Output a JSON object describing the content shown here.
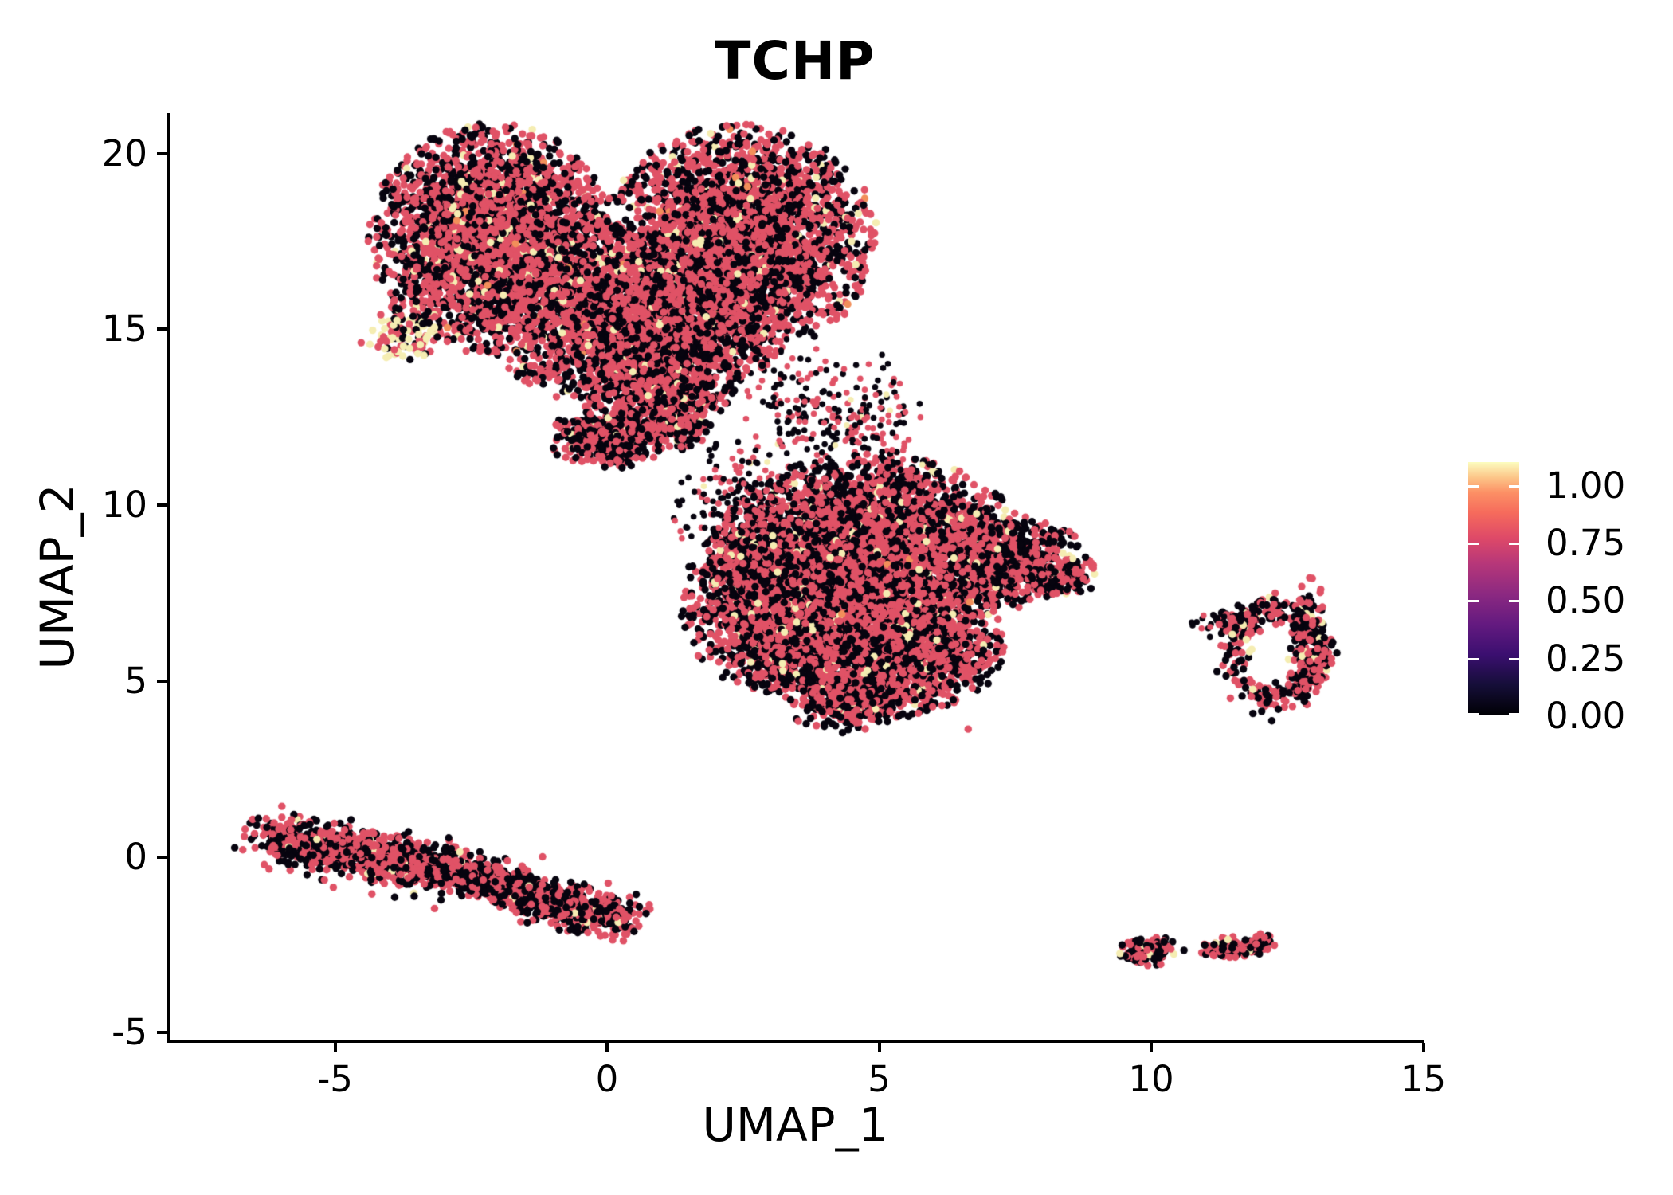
{
  "title": "TCHP",
  "axes": {
    "x": {
      "label": "UMAP_1",
      "ticks": [
        "-5",
        "0",
        "5",
        "10",
        "15"
      ],
      "tick_values": [
        -5,
        0,
        5,
        10,
        15
      ]
    },
    "y": {
      "label": "UMAP_2",
      "ticks": [
        "20",
        "15",
        "10",
        "5",
        "0",
        "-5"
      ],
      "tick_values": [
        20,
        15,
        10,
        5,
        0,
        -5
      ]
    }
  },
  "legend": {
    "labels": [
      "1.00",
      "0.75",
      "0.50",
      "0.25",
      "0.00"
    ],
    "label_values": [
      1.0,
      0.75,
      0.5,
      0.25,
      0.0
    ],
    "bar_value_max": 1.1,
    "gradient_stops": [
      [
        0.0,
        "#000004"
      ],
      [
        0.12,
        "#150e38"
      ],
      [
        0.24,
        "#3b0f70"
      ],
      [
        0.36,
        "#641a80"
      ],
      [
        0.48,
        "#8c2981"
      ],
      [
        0.6,
        "#b73779"
      ],
      [
        0.7,
        "#de4968"
      ],
      [
        0.8,
        "#f66b5c"
      ],
      [
        0.88,
        "#fc9065"
      ],
      [
        0.94,
        "#fcc689"
      ],
      [
        1.0,
        "#fcfdbf"
      ]
    ]
  },
  "palette": {
    "red": "#e05266",
    "black": "#07040f",
    "cream": "#f5edb2",
    "orange": "#f28f5a"
  },
  "chart_data": {
    "type": "scatter",
    "title": "TCHP",
    "xlabel": "UMAP_1",
    "ylabel": "UMAP_2",
    "xlim": [
      -8.1,
      15.0
    ],
    "ylim": [
      -5.2,
      21.1
    ],
    "grid": false,
    "legend_position": "right-colorbar",
    "point_radius_px": 4.7,
    "seed": 123456,
    "clusters": [
      {
        "name": "top-left-lobe",
        "kind": "gauss",
        "cx": -2.1,
        "cy": 17.55,
        "sx": 1.05,
        "sy": 1.5,
        "clip": 2.2,
        "n": 3200,
        "mix": {
          "red": 0.555,
          "black": 0.4,
          "cream": 0.04,
          "orange": 0.005
        }
      },
      {
        "name": "top-right-lobe",
        "kind": "gauss",
        "cx": 2.45,
        "cy": 17.55,
        "sx": 1.15,
        "sy": 1.5,
        "clip": 2.2,
        "n": 3200,
        "mix": {
          "red": 0.565,
          "black": 0.4,
          "cream": 0.03,
          "orange": 0.005
        }
      },
      {
        "name": "top-mid-bulge",
        "kind": "gauss",
        "cx": 0.55,
        "cy": 15.3,
        "sx": 1.25,
        "sy": 1.25,
        "clip": 2.2,
        "n": 2600,
        "mix": {
          "red": 0.54,
          "black": 0.42,
          "cream": 0.035,
          "orange": 0.005
        }
      },
      {
        "name": "cream-hotspot",
        "kind": "gauss",
        "cx": -3.8,
        "cy": 14.8,
        "sx": 0.38,
        "sy": 0.38,
        "clip": 2.0,
        "n": 90,
        "mix": {
          "red": 0.38,
          "black": 0.22,
          "cream": 0.4
        }
      },
      {
        "name": "top-lower-tail",
        "kind": "gauss",
        "cx": 1.0,
        "cy": 13.5,
        "sx": 0.65,
        "sy": 0.65,
        "clip": 2.2,
        "n": 600,
        "mix": {
          "red": 0.5,
          "black": 0.47,
          "cream": 0.03
        }
      },
      {
        "name": "stem-a",
        "kind": "gauss",
        "cx": 0.0,
        "cy": 11.9,
        "sx": 0.5,
        "sy": 0.4,
        "clip": 2.2,
        "n": 420,
        "mix": {
          "red": 0.52,
          "black": 0.45,
          "cream": 0.03
        }
      },
      {
        "name": "stem-b",
        "kind": "gauss",
        "cx": 1.15,
        "cy": 12.3,
        "sx": 0.35,
        "sy": 0.35,
        "clip": 2.2,
        "n": 220,
        "mix": {
          "red": 0.52,
          "black": 0.45,
          "cream": 0.03
        }
      },
      {
        "name": "bridge-sparse",
        "kind": "line",
        "x1": 2.7,
        "y1": 14.0,
        "x2": 5.7,
        "y2": 10.6,
        "sx": 0.4,
        "sy": 0.55,
        "n": 170,
        "r": 3.8,
        "mix": {
          "red": 0.45,
          "black": 0.52,
          "cream": 0.03
        }
      },
      {
        "name": "below-right-lobe",
        "kind": "gauss",
        "cx": 4.35,
        "cy": 12.6,
        "sx": 0.8,
        "sy": 0.95,
        "clip": 2.0,
        "n": 140,
        "r": 3.8,
        "mix": {
          "red": 0.45,
          "black": 0.52,
          "cream": 0.03
        }
      },
      {
        "name": "mid-main",
        "kind": "gauss",
        "cx": 4.8,
        "cy": 8.7,
        "sx": 1.35,
        "sy": 1.25,
        "clip": 2.2,
        "n": 3800,
        "mix": {
          "red": 0.52,
          "black": 0.445,
          "cream": 0.03,
          "orange": 0.005
        }
      },
      {
        "name": "mid-left-bulge",
        "kind": "gauss",
        "cx": 3.0,
        "cy": 7.2,
        "sx": 0.75,
        "sy": 1.15,
        "clip": 2.2,
        "n": 1500,
        "mix": {
          "red": 0.5,
          "black": 0.47,
          "cream": 0.03
        }
      },
      {
        "name": "mid-bottom",
        "kind": "gauss",
        "cx": 4.95,
        "cy": 6.0,
        "sx": 1.1,
        "sy": 0.95,
        "clip": 2.2,
        "n": 2200,
        "mix": {
          "red": 0.5,
          "black": 0.47,
          "cream": 0.03
        }
      },
      {
        "name": "mid-bottom-tip",
        "kind": "gauss",
        "cx": 4.4,
        "cy": 4.5,
        "sx": 0.55,
        "sy": 0.45,
        "clip": 2.2,
        "n": 350,
        "mix": {
          "red": 0.52,
          "black": 0.45,
          "cream": 0.03
        }
      },
      {
        "name": "mid-right-arm",
        "kind": "gauss",
        "cx": 7.4,
        "cy": 8.4,
        "sx": 0.65,
        "sy": 0.6,
        "clip": 2.2,
        "n": 650,
        "mix": {
          "red": 0.5,
          "black": 0.47,
          "cream": 0.03
        }
      },
      {
        "name": "mid-arm-tip",
        "kind": "gauss",
        "cx": 8.4,
        "cy": 8.0,
        "sx": 0.3,
        "sy": 0.3,
        "clip": 2.2,
        "n": 90,
        "mix": {
          "red": 0.5,
          "black": 0.47,
          "cream": 0.03
        }
      },
      {
        "name": "mid-topleft-sparse",
        "kind": "gauss",
        "cx": 2.6,
        "cy": 10.0,
        "sx": 0.7,
        "sy": 1.0,
        "clip": 2.0,
        "n": 260,
        "r": 3.8,
        "mix": {
          "red": 0.45,
          "black": 0.52,
          "cream": 0.03
        }
      },
      {
        "name": "lone-dot",
        "kind": "gauss",
        "cx": 6.65,
        "cy": 3.65,
        "sx": 0.02,
        "sy": 0.02,
        "clip": 2.0,
        "n": 1,
        "mix": {
          "red": 1.0
        }
      },
      {
        "name": "cigar-left",
        "kind": "line",
        "x1": -6.15,
        "y1": 0.55,
        "x2": -3.0,
        "y2": -0.35,
        "sx": 0.3,
        "sy": 0.32,
        "n": 950,
        "mix": {
          "red": 0.52,
          "black": 0.45,
          "cream": 0.03
        }
      },
      {
        "name": "cigar-right",
        "kind": "line",
        "x1": -3.0,
        "y1": -0.35,
        "x2": 0.2,
        "y2": -1.8,
        "sx": 0.3,
        "sy": 0.28,
        "n": 900,
        "mix": {
          "red": 0.5,
          "black": 0.47,
          "cream": 0.03
        }
      },
      {
        "name": "ring-cluster",
        "kind": "ring",
        "cx": 12.27,
        "cy": 5.75,
        "rx": 0.8,
        "ry": 1.25,
        "sr": 0.16,
        "n": 330,
        "mix": {
          "red": 0.44,
          "black": 0.5,
          "cream": 0.06
        }
      },
      {
        "name": "ring-right-column",
        "kind": "gauss",
        "cx": 12.9,
        "cy": 6.1,
        "sx": 0.22,
        "sy": 0.95,
        "clip": 2.0,
        "n": 130,
        "mix": {
          "red": 0.45,
          "black": 0.5,
          "cream": 0.05
        }
      },
      {
        "name": "ring-topleft-tail",
        "kind": "gauss",
        "cx": 11.6,
        "cy": 6.7,
        "sx": 0.28,
        "sy": 0.26,
        "clip": 2.0,
        "n": 60,
        "mix": {
          "red": 0.45,
          "black": 0.5,
          "cream": 0.05
        }
      },
      {
        "name": "ring-left-sparse",
        "kind": "gauss",
        "cx": 11.1,
        "cy": 6.7,
        "sx": 0.25,
        "sy": 0.25,
        "clip": 1.8,
        "n": 16,
        "r": 3.8,
        "mix": {
          "red": 0.3,
          "black": 0.68,
          "cream": 0.02
        }
      },
      {
        "name": "bottom-blob-a",
        "kind": "gauss",
        "cx": 9.93,
        "cy": -2.66,
        "sx": 0.26,
        "sy": 0.22,
        "clip": 2.1,
        "n": 130,
        "mix": {
          "red": 0.48,
          "black": 0.49,
          "cream": 0.03
        }
      },
      {
        "name": "bottom-dot",
        "kind": "gauss",
        "cx": 10.62,
        "cy": -2.63,
        "sx": 0.02,
        "sy": 0.02,
        "clip": 2.0,
        "n": 1,
        "mix": {
          "black": 1.0
        }
      },
      {
        "name": "bottom-blob-b",
        "kind": "gauss",
        "cx": 11.45,
        "cy": -2.58,
        "sx": 0.32,
        "sy": 0.14,
        "clip": 2.2,
        "n": 110,
        "mix": {
          "red": 0.5,
          "black": 0.46,
          "cream": 0.04
        }
      },
      {
        "name": "bottom-blob-b-bump",
        "kind": "gauss",
        "cx": 12.0,
        "cy": -2.42,
        "sx": 0.14,
        "sy": 0.16,
        "clip": 2.0,
        "n": 30,
        "mix": {
          "red": 0.6,
          "black": 0.37,
          "cream": 0.03
        }
      }
    ]
  }
}
